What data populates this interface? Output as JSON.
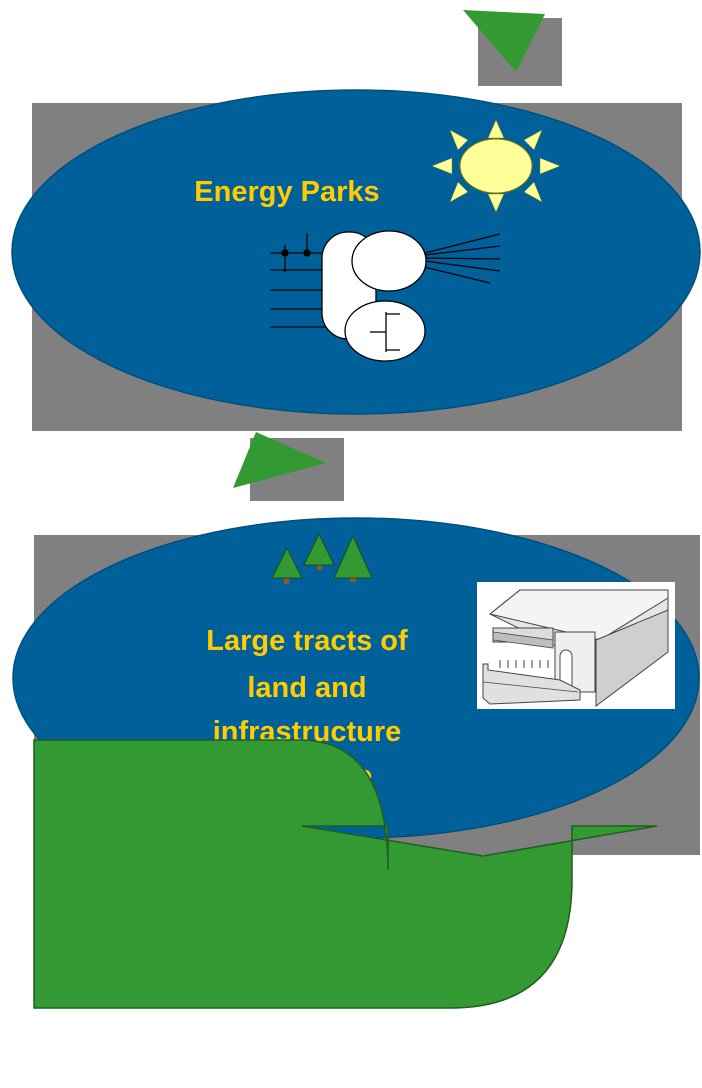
{
  "diagram": {
    "top_node": {
      "label": "Energy Parks",
      "icons": [
        "sun-icon",
        "power-plant-icon"
      ]
    },
    "bottom_node": {
      "label_lines": [
        "Large tracts of",
        "land and",
        "infrastructure",
        "available"
      ],
      "icons": [
        "pine-trees-icon",
        "industrial-building-icon"
      ]
    },
    "arrows": [
      "top-triangle-arrow",
      "middle-triangle-arrow",
      "curved-up-arrow"
    ],
    "colors": {
      "ellipse_fill": "#00609a",
      "backdrop": "#808080",
      "label": "#ffcc00",
      "arrow": "#339933",
      "sun": "#ffff99"
    }
  }
}
